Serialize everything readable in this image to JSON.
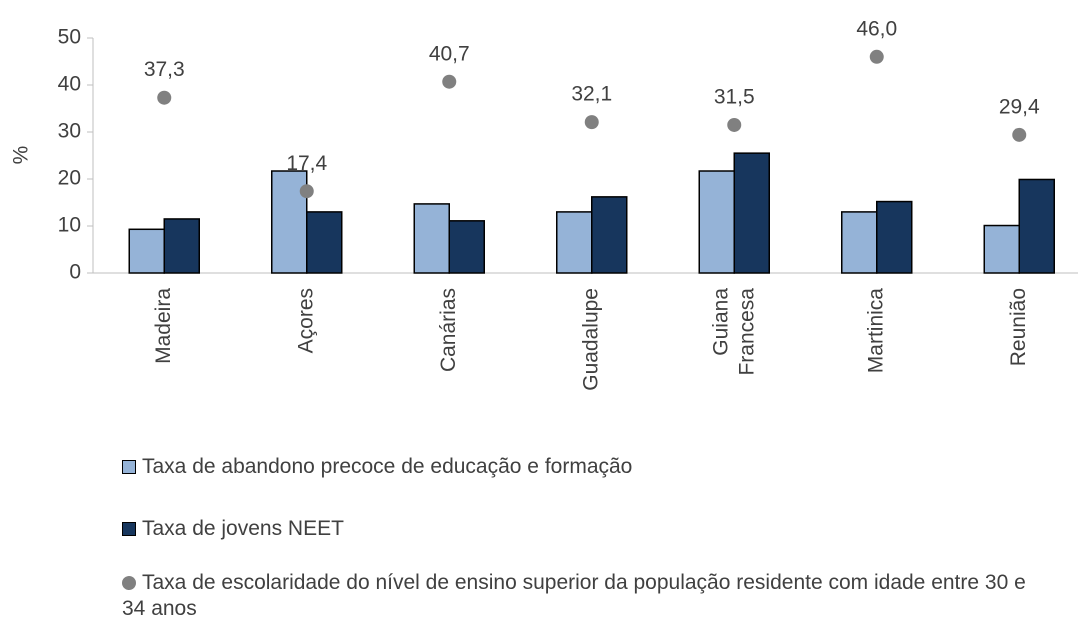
{
  "chart_data": {
    "type": "bar",
    "y_label": "%",
    "categories": [
      "Madeira",
      "Açores",
      "Canárias",
      "Guadalupe",
      "Guiana Francesa",
      "Martinica",
      "Reunião"
    ],
    "series": [
      {
        "name": "Taxa de abandono precoce de educação e formação",
        "type": "bar",
        "color": "#95b3d7",
        "values": [
          9.3,
          21.7,
          14.7,
          13.0,
          21.7,
          13.0,
          10.1
        ]
      },
      {
        "name": "Taxa de jovens NEET",
        "type": "bar",
        "color": "#17365d",
        "values": [
          11.5,
          13.0,
          11.1,
          16.2,
          25.5,
          15.2,
          19.9
        ]
      },
      {
        "name": "Taxa de escolaridade do nível de ensino superior da população residente com idade entre 30 e 34 anos",
        "type": "scatter",
        "color": "#808080",
        "values": [
          37.3,
          17.4,
          40.7,
          32.1,
          31.5,
          46.0,
          29.4
        ],
        "value_labels": [
          "37,3",
          "17,4",
          "40,7",
          "32,1",
          "31,5",
          "46,0",
          "29,4"
        ]
      }
    ],
    "ylim": [
      0,
      50
    ],
    "yticks": [
      0,
      10,
      20,
      30,
      40,
      50
    ],
    "legend": "bottom"
  }
}
